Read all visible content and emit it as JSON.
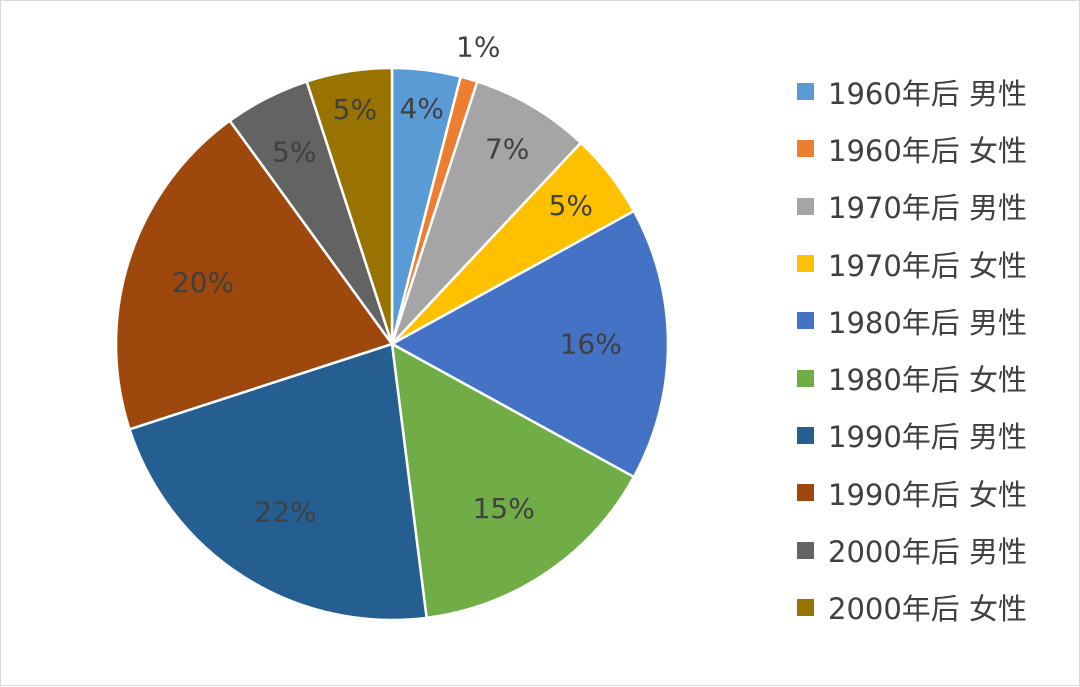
{
  "chart_data": {
    "type": "pie",
    "title": "",
    "categories": [
      "1960年后 男性",
      "1960年后 女性",
      "1970年后 男性",
      "1970年后 女性",
      "1980年后 男性",
      "1980年后 女性",
      "1990年后 男性",
      "1990年后 女性",
      "2000年后 男性",
      "2000年后 女性"
    ],
    "values": [
      4,
      1,
      7,
      5,
      16,
      15,
      22,
      20,
      5,
      5
    ],
    "data_labels": [
      "4%",
      "1%",
      "7%",
      "5%",
      "16%",
      "15%",
      "22%",
      "20%",
      "5%",
      "5%"
    ],
    "colors": [
      "#5B9BD5",
      "#ED7D31",
      "#A5A5A5",
      "#FFC000",
      "#4472C4",
      "#70AD47",
      "#255E91",
      "#9E480E",
      "#636363",
      "#997300"
    ],
    "start_angle": "12 o'clock",
    "direction": "clockwise",
    "legend_position": "right"
  }
}
